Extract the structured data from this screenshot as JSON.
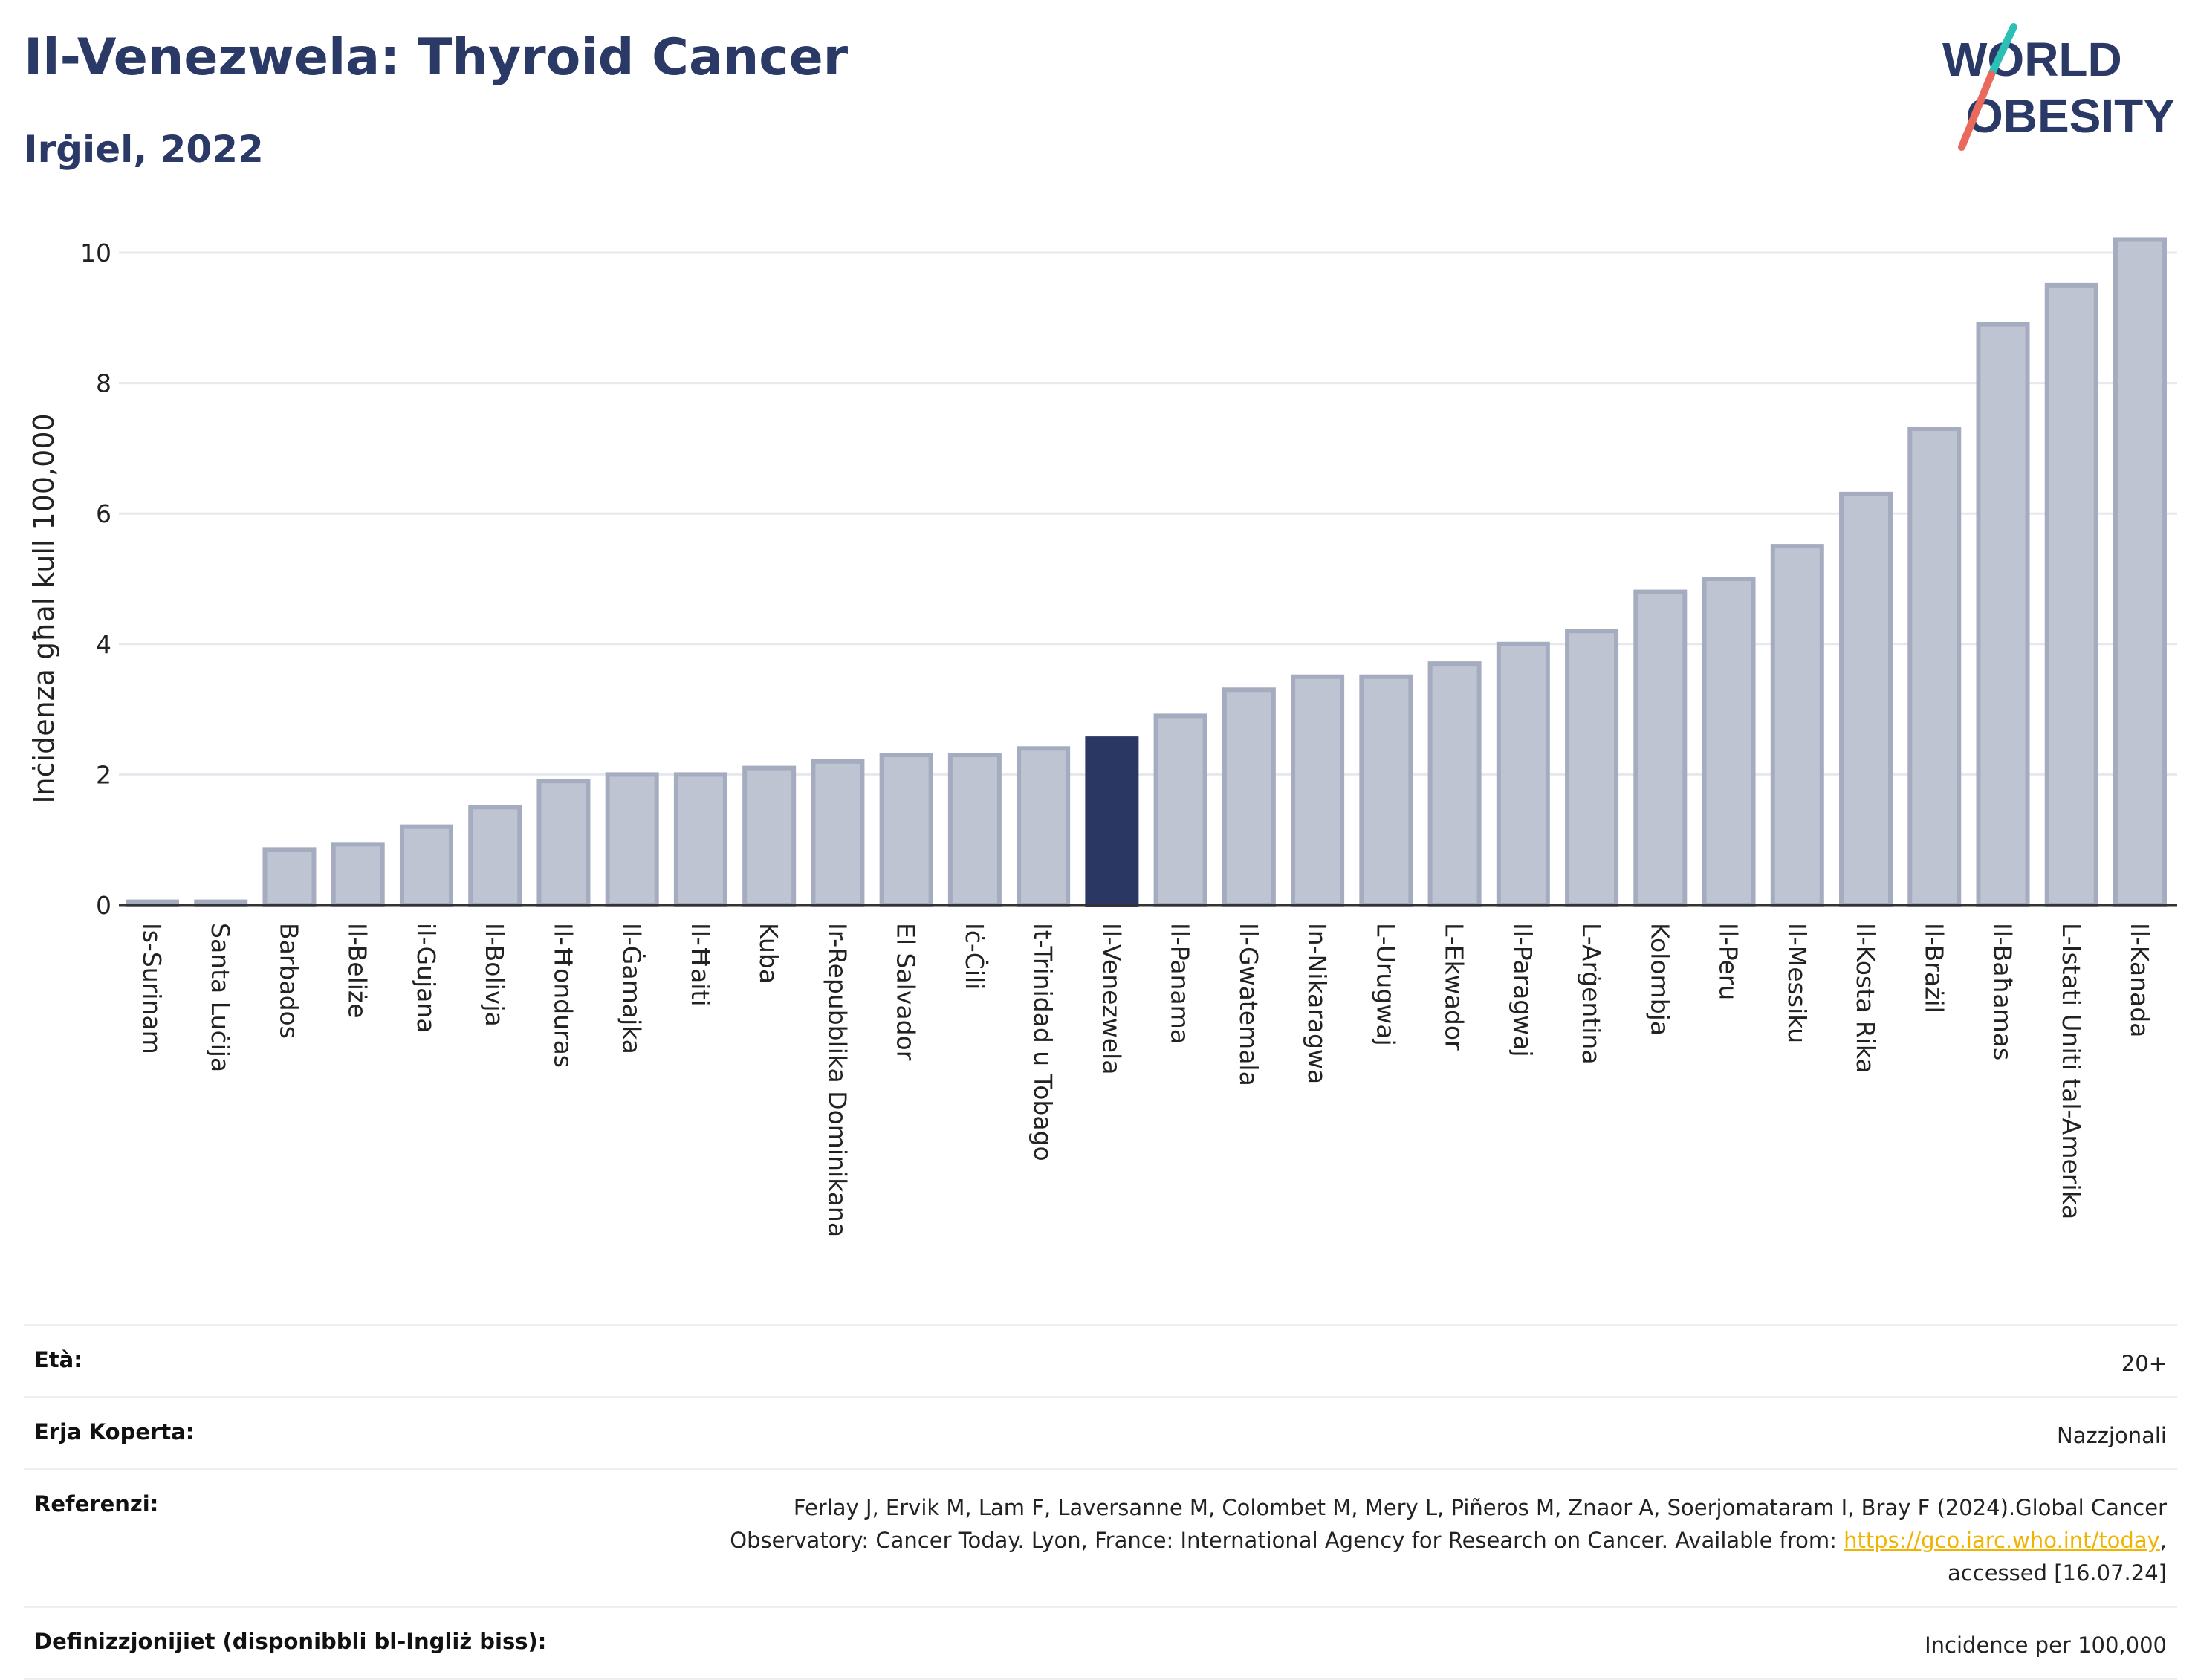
{
  "header": {
    "title": "Il-Venezwela: Thyroid Cancer",
    "subtitle": "Irġiel, 2022"
  },
  "logo": {
    "line1": "WORLD",
    "line2": "OBESITY"
  },
  "colors": {
    "highlight": "#2b3763",
    "bar": "#bfc4d2",
    "bar_stroke": "#a6acbf",
    "title": "#2b3966",
    "link": "#f0b400"
  },
  "chart_data": {
    "type": "bar",
    "ylabel": "Inċidenza għal kull 100,000",
    "xlabel": "",
    "ylim": [
      0,
      10.5
    ],
    "yticks": [
      0,
      2,
      4,
      6,
      8,
      10
    ],
    "grid": true,
    "highlight": "Il-Venezwela",
    "categories": [
      "Is-Surinam",
      "Santa Luċija",
      "Barbados",
      "Il-Beliże",
      "il-Gujana",
      "Il-Bolivja",
      "Il-Ħonduras",
      "Il-Ġamajka",
      "Il-Ħaiti",
      "Kuba",
      "Ir-Repubblika Dominikana",
      "El Salvador",
      "Iċ-Ċili",
      "It-Trinidad u Tobago",
      "Il-Venezwela",
      "Il-Panama",
      "Il-Gwatemala",
      "In-Nikaragwa",
      "L-Urugwaj",
      "L-Ekwador",
      "Il-Paragwaj",
      "L-Arġentina",
      "Kolombja",
      "Il-Peru",
      "Il-Messiku",
      "Il-Kosta Rika",
      "Il-Brażil",
      "Il-Baħamas",
      "L-Istati Uniti tal-Amerika",
      "Il-Kanada"
    ],
    "values": [
      0.05,
      0.05,
      0.85,
      0.93,
      1.2,
      1.5,
      1.9,
      2.0,
      2.0,
      2.1,
      2.2,
      2.3,
      2.3,
      2.4,
      2.55,
      2.9,
      3.3,
      3.5,
      3.5,
      3.7,
      4.0,
      4.2,
      4.8,
      5.0,
      5.5,
      6.3,
      7.3,
      8.9,
      9.5,
      10.2
    ]
  },
  "info": {
    "age_label": "Età:",
    "age_value": "20+",
    "area_label": "Erja Koperta:",
    "area_value": "Nazzjonali",
    "ref_label": "Referenzi:",
    "ref_text1": "Ferlay J, Ervik M, Lam F, Laversanne M, Colombet M, Mery L, Piñeros M, Znaor A, Soerjomataram I, Bray F (2024).Global Cancer",
    "ref_text2": "Observatory: Cancer Today. Lyon, France: International Agency for Research on Cancer. Available from: ",
    "ref_link": "https://gco.iarc.who.int/today",
    "ref_text3": ",",
    "ref_text4": "accessed [16.07.24]",
    "def_label": "Definizzjonijiet (disponibbli bl-Ingliż biss):",
    "def_value": "Incidence per 100,000"
  }
}
